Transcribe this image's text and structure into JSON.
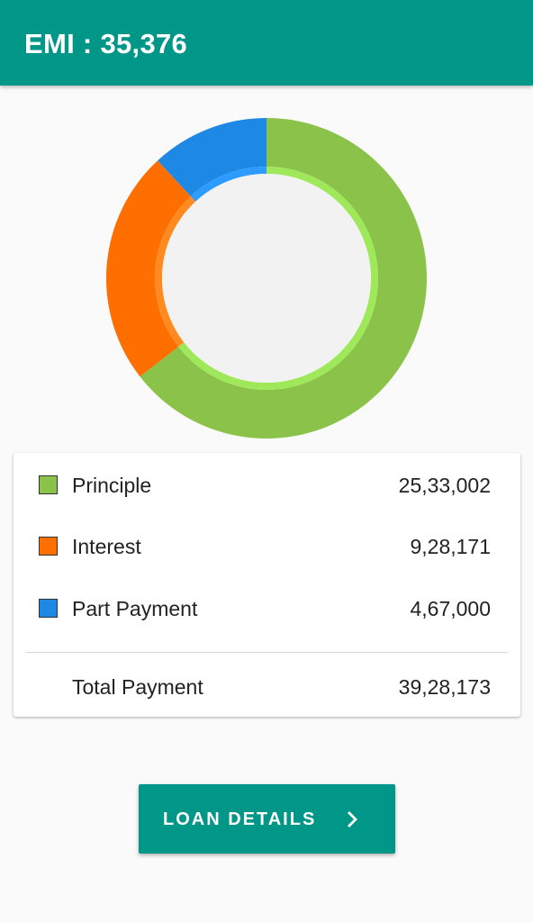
{
  "header": {
    "title": "EMI : 35,376"
  },
  "chart_data": {
    "type": "pie",
    "categories": [
      "Principle",
      "Interest",
      "Part Payment"
    ],
    "values": [
      2533002,
      928171,
      467000
    ],
    "colors": [
      "#8bc34a",
      "#ff6f00",
      "#1e88e5"
    ],
    "inner_colors": [
      "#9ee85a",
      "#ff8a1f",
      "#2d9bff"
    ],
    "hole_color": "#f2f2f2",
    "style": "donut"
  },
  "summary": {
    "rows": [
      {
        "label": "Principle",
        "value": "25,33,002",
        "color": "#8bc34a"
      },
      {
        "label": "Interest",
        "value": "9,28,171",
        "color": "#ff6f00"
      },
      {
        "label": "Part Payment",
        "value": "4,67,000",
        "color": "#1e88e5"
      }
    ],
    "total": {
      "label": "Total Payment",
      "value": "39,28,173"
    }
  },
  "actions": {
    "loan_details_label": "LOAN DETAILS",
    "loan_details_icon": "chevron-right-icon"
  },
  "theme": {
    "primary": "#009688"
  }
}
